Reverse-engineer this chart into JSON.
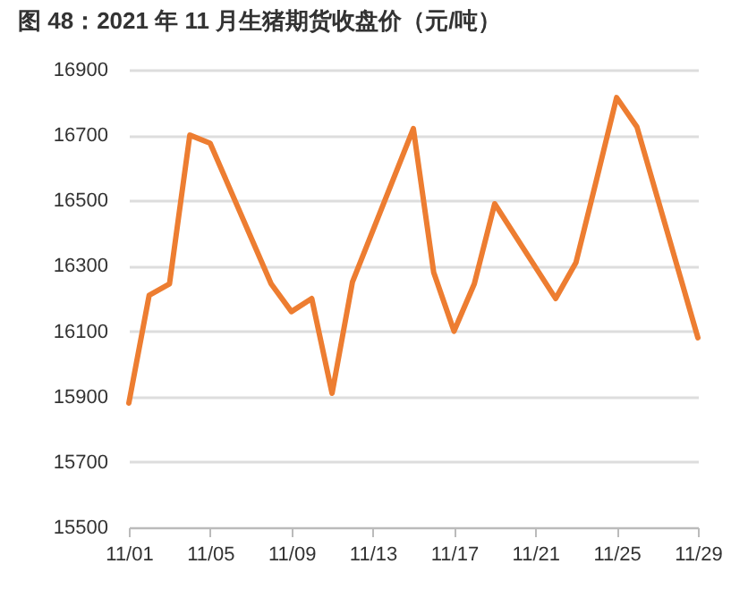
{
  "chart_data": {
    "type": "line",
    "title": "图 48：2021 年 11 月生猪期货收盘价（元/吨）",
    "x": [
      "2021-11-01",
      "2021-11-02",
      "2021-11-03",
      "2021-11-04",
      "2021-11-05",
      "2021-11-08",
      "2021-11-09",
      "2021-11-10",
      "2021-11-11",
      "2021-11-12",
      "2021-11-15",
      "2021-11-16",
      "2021-11-17",
      "2021-11-18",
      "2021-11-19",
      "2021-11-22",
      "2021-11-23",
      "2021-11-24",
      "2021-11-25",
      "2021-11-26",
      "2021-11-29"
    ],
    "series": [
      {
        "color": "#ed7d31",
        "values": [
          15880,
          16210,
          16245,
          16700,
          16675,
          16245,
          16160,
          16200,
          15910,
          16250,
          16720,
          16280,
          16100,
          16245,
          16490,
          16200,
          16310,
          16560,
          16815,
          16725,
          16080
        ]
      }
    ],
    "xlim": [
      "2021-11-01",
      "2021-11-29"
    ],
    "xticks": [
      {
        "value": "2021-11-01",
        "label": "11/01"
      },
      {
        "value": "2021-11-05",
        "label": "11/05"
      },
      {
        "value": "2021-11-09",
        "label": "11/09"
      },
      {
        "value": "2021-11-13",
        "label": "11/13"
      },
      {
        "value": "2021-11-17",
        "label": "11/17"
      },
      {
        "value": "2021-11-21",
        "label": "11/21"
      },
      {
        "value": "2021-11-25",
        "label": "11/25"
      },
      {
        "value": "2021-11-29",
        "label": "11/29"
      }
    ],
    "ylim": [
      15500,
      16900
    ],
    "yticks": [
      15500,
      15700,
      15900,
      16100,
      16300,
      16500,
      16700,
      16900
    ],
    "grid": "y",
    "legend": false,
    "marker": "none",
    "line_style": "solid"
  }
}
